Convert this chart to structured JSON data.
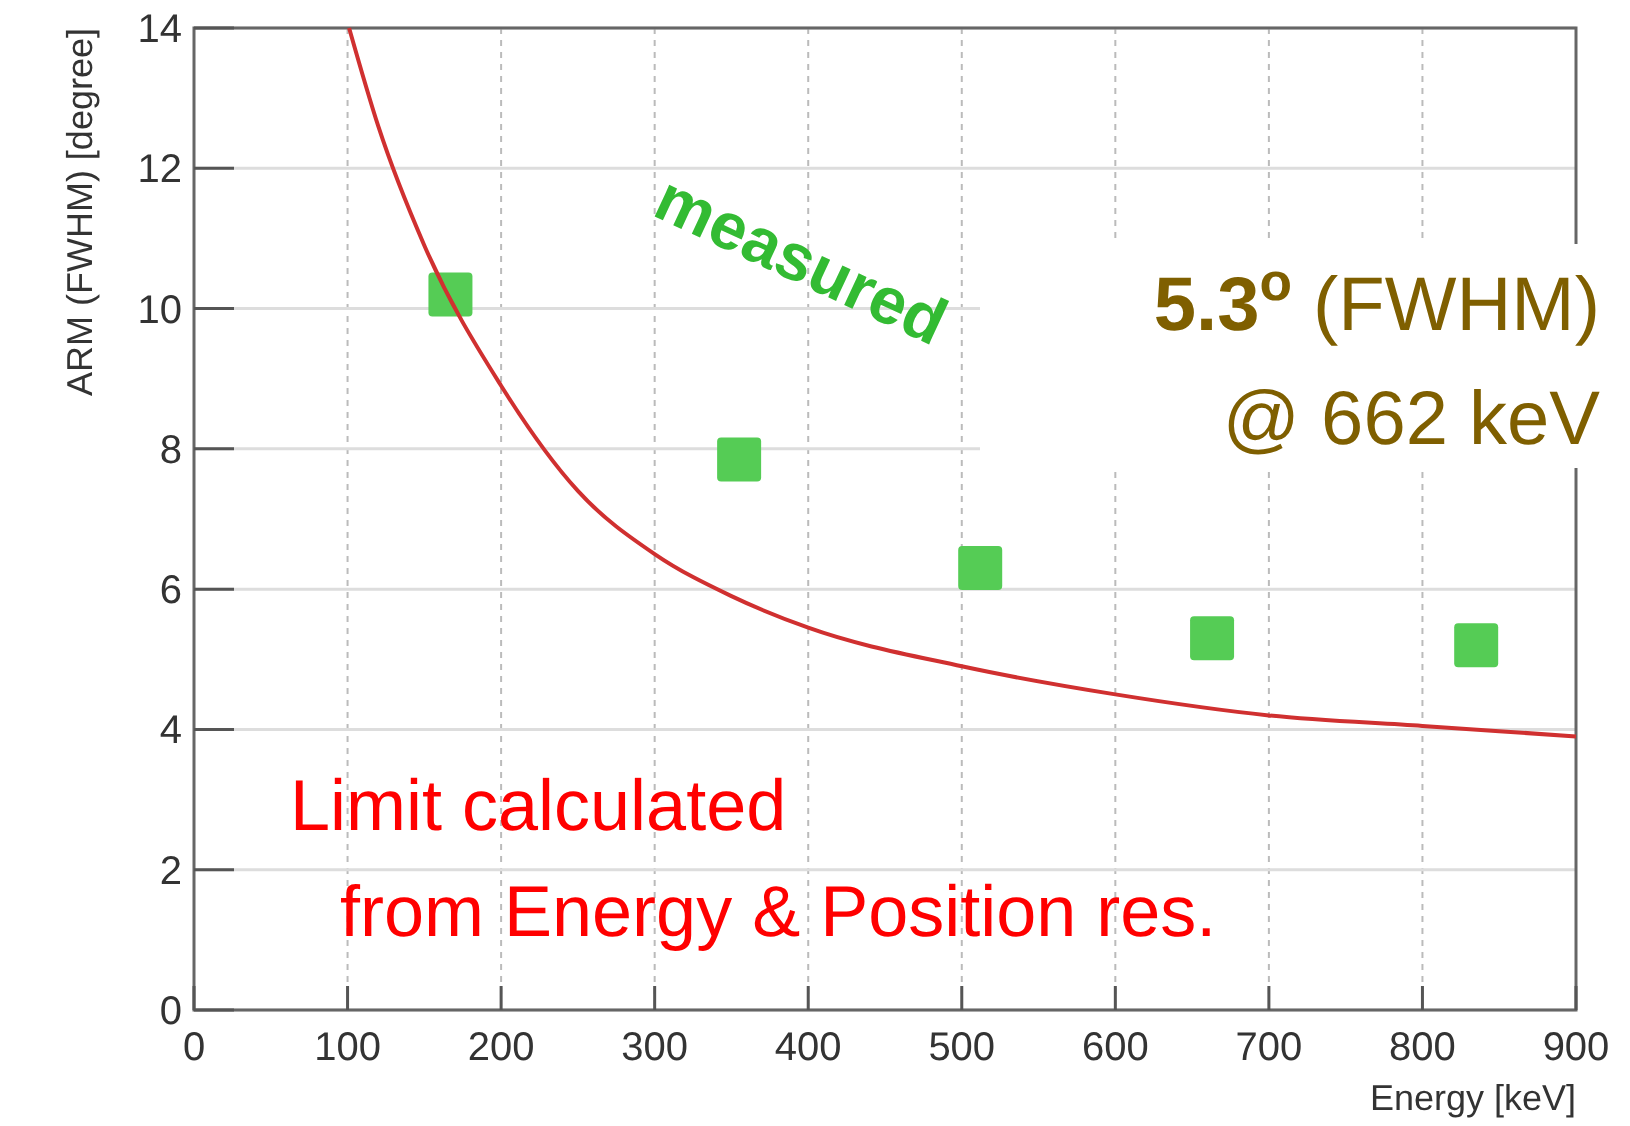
{
  "chart_data": {
    "type": "scatter",
    "xlabel": "Energy [keV]",
    "ylabel": "ARM (FWHM) [degree]",
    "xlim": [
      0,
      900
    ],
    "ylim": [
      0,
      14
    ],
    "xticks": [
      0,
      100,
      200,
      300,
      400,
      500,
      600,
      700,
      800,
      900
    ],
    "yticks": [
      0,
      2,
      4,
      6,
      8,
      10,
      12,
      14
    ],
    "grid": true,
    "series": [
      {
        "name": "measured",
        "marker": "square",
        "color": "#55cc55",
        "x": [
          167,
          355,
          512,
          663,
          835
        ],
        "values": [
          10.2,
          7.85,
          6.3,
          5.3,
          5.2
        ]
      },
      {
        "name": "Limit calculated from Energy & Position res.",
        "type": "line",
        "line_style": "solid",
        "color": "#d03030",
        "x": [
          101,
          120,
          150,
          200,
          250,
          300,
          350,
          400,
          500,
          600,
          700,
          800,
          900
        ],
        "values": [
          14,
          12.6,
          10.9,
          8.9,
          7.4,
          6.5,
          5.9,
          5.45,
          4.9,
          4.5,
          4.2,
          4.05,
          3.9
        ]
      }
    ],
    "annotations": [
      "5.3$^{o}$ (FWHM) @ 662 keV"
    ]
  }
}
